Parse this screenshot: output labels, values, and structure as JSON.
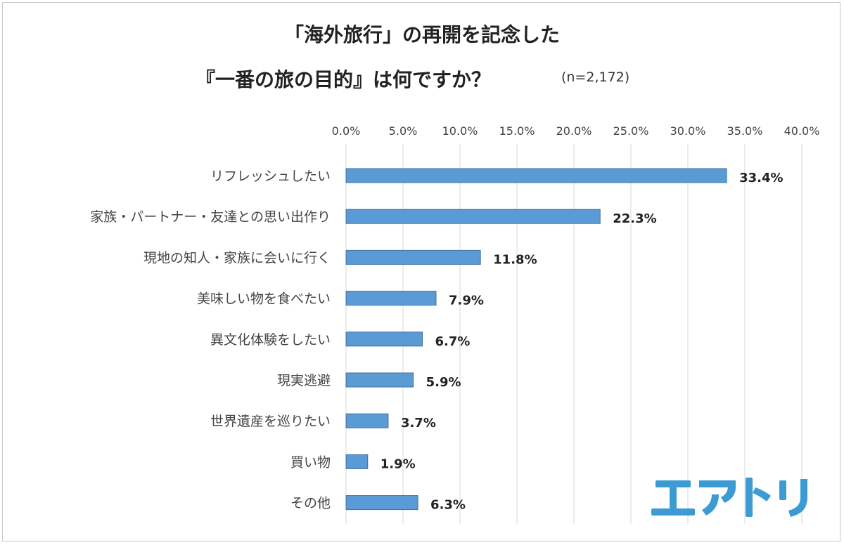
{
  "title": {
    "line1": "「海外旅行」の再開を記念した",
    "line2": "『一番の旅の目的』は何ですか？",
    "sample": "(n=2,172)"
  },
  "logo": {
    "text": "エアトリ",
    "color": "#3d9bd4"
  },
  "colors": {
    "bar": "#5b9bd5",
    "bar_border": "#41719c",
    "grid": "#d9d9d9"
  },
  "chart_data": {
    "type": "bar",
    "orientation": "horizontal",
    "title": "「海外旅行」の再開を記念した『一番の旅の目的』は何ですか？",
    "categories": [
      "リフレッシュしたい",
      "家族・パートナー・友達との思い出作り",
      "現地の知人・家族に会いに行く",
      "美味しい物を食べたい",
      "異文化体験をしたい",
      "現実逃避",
      "世界遺産を巡りたい",
      "買い物",
      "その他"
    ],
    "values": [
      33.4,
      22.3,
      11.8,
      7.9,
      6.7,
      5.9,
      3.7,
      1.9,
      6.3
    ],
    "value_labels": [
      "33.4%",
      "22.3%",
      "11.8%",
      "7.9%",
      "6.7%",
      "5.9%",
      "3.7%",
      "1.9%",
      "6.3%"
    ],
    "xlim": [
      0,
      40
    ],
    "ticks": [
      "0.0%",
      "5.0%",
      "10.0%",
      "15.0%",
      "20.0%",
      "25.0%",
      "30.0%",
      "35.0%",
      "40.0%"
    ],
    "grid": true,
    "axis_position": "top"
  }
}
